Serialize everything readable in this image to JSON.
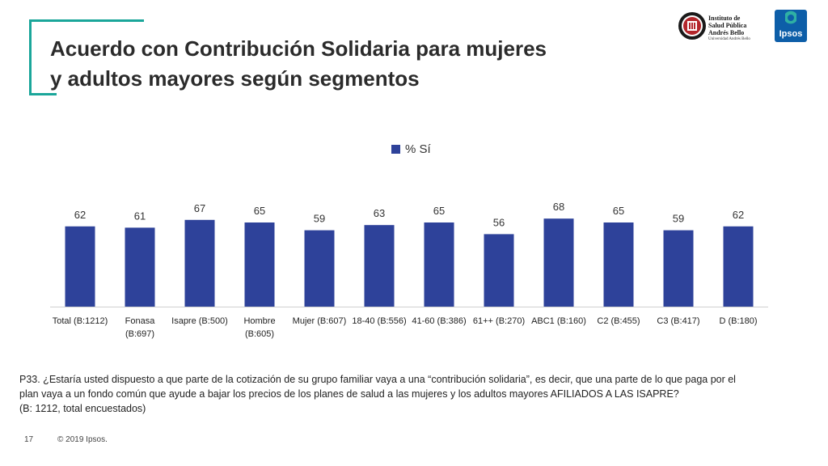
{
  "title_lines": [
    "Acuerdo con Contribución Solidaria para mujeres",
    "y adultos mayores según segmentos"
  ],
  "logos": {
    "isp_lines": [
      "Instituto de",
      "Salud Pública",
      "Andrés Bello"
    ],
    "isp_sub": "Universidad Andrés Bello",
    "ipsos": "Ipsos"
  },
  "colors": {
    "bar": "#2e429a",
    "accent": "#1aa69a",
    "ipsos_blue": "#0d5ea8",
    "seal_red": "#b3262b"
  },
  "chart_data": {
    "type": "bar",
    "categories": [
      [
        "Total (B:1212)"
      ],
      [
        "Fonasa",
        "(B:697)"
      ],
      [
        "Isapre (B:500)"
      ],
      [
        "Hombre",
        "(B:605)"
      ],
      [
        "Mujer (B:607)"
      ],
      [
        "18-40 (B:556)"
      ],
      [
        "41-60 (B:386)"
      ],
      [
        "61++ (B:270)"
      ],
      [
        "ABC1 (B:160)"
      ],
      [
        "C2 (B:455)"
      ],
      [
        "C3 (B:417)"
      ],
      [
        "D (B:180)"
      ]
    ],
    "series": [
      {
        "name": "% Sí",
        "values": [
          62,
          61,
          67,
          65,
          59,
          63,
          65,
          56,
          68,
          65,
          59,
          62
        ]
      }
    ],
    "legend_position": "top-center",
    "grid": false
  },
  "note_lines": [
    "P33. ¿Estaría usted dispuesto a que parte de la cotización de su grupo familiar vaya a una “contribución solidaria”, es decir, que una parte de lo que paga por el",
    "plan vaya a un fondo común que ayude a bajar los precios de los planes de salud a las mujeres y los adultos mayores AFILIADOS A LAS ISAPRE?",
    "(B: 1212, total encuestados)"
  ],
  "footer": {
    "page": "17",
    "copyright": "© 2019 Ipsos."
  }
}
